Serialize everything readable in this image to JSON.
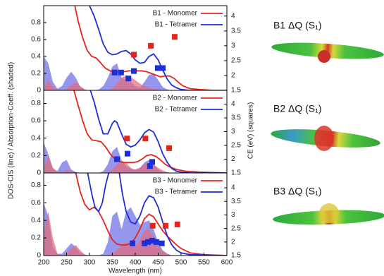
{
  "chart_data": [
    {
      "type": "line",
      "xlim": [
        200,
        600
      ],
      "ylim": [
        0,
        1.0
      ],
      "yticks": [
        0,
        0.2,
        0.4,
        0.6,
        0.8
      ],
      "y2lim": [
        1.5,
        4.35
      ],
      "y2ticks": [
        1.5,
        2,
        2.5,
        3,
        3.5,
        4
      ],
      "series": [
        {
          "style": "area",
          "color": "#6a6ae6",
          "x": [
            200,
            210,
            220,
            230,
            240,
            250,
            260,
            270,
            280,
            290,
            300,
            310,
            320,
            330,
            340,
            350,
            360,
            370,
            380,
            390,
            400,
            410,
            420,
            430,
            440,
            450,
            460,
            470,
            480,
            490,
            500
          ],
          "values": [
            0.4,
            0.32,
            0.1,
            0.02,
            0.05,
            0.15,
            0.22,
            0.15,
            0.04,
            0.01,
            0,
            0,
            0.01,
            0.05,
            0.15,
            0.28,
            0.32,
            0.15,
            0.12,
            0.1,
            0.05,
            0.03,
            0.1,
            0.18,
            0.2,
            0.12,
            0.04,
            0.01,
            0,
            0,
            0
          ]
        },
        {
          "style": "area",
          "color": "#e46a78",
          "x": [
            200,
            210,
            220,
            230,
            240,
            250,
            260,
            270,
            280,
            290,
            300,
            310,
            320,
            330,
            340,
            350,
            360,
            370,
            380,
            390,
            400,
            410,
            420,
            430,
            440,
            450,
            460,
            470,
            480,
            490,
            500
          ],
          "values": [
            0.02,
            0.12,
            0.04,
            0.01,
            0,
            0.02,
            0.06,
            0.1,
            0.05,
            0.01,
            0,
            0,
            0,
            0,
            0,
            0.02,
            0.08,
            0.15,
            0.18,
            0.16,
            0.12,
            0.08,
            0.05,
            0.03,
            0.02,
            0.01,
            0,
            0,
            0,
            0,
            0
          ]
        },
        {
          "style": "line",
          "name": "B1 - Monomer",
          "color": "#e8231c",
          "x": [
            268,
            275,
            285,
            295,
            305,
            315,
            325,
            335,
            345,
            355,
            365,
            375,
            385,
            395,
            405,
            415,
            425,
            435,
            445,
            455,
            465,
            475,
            485,
            495,
            505,
            520,
            540,
            570,
            600
          ],
          "values": [
            1.0,
            0.82,
            0.62,
            0.47,
            0.4,
            0.38,
            0.32,
            0.26,
            0.23,
            0.22,
            0.22,
            0.22,
            0.23,
            0.23,
            0.23,
            0.23,
            0.22,
            0.2,
            0.18,
            0.16,
            0.17,
            0.17,
            0.14,
            0.09,
            0.05,
            0.02,
            0.01,
            0,
            0
          ]
        },
        {
          "style": "line",
          "name": "B1 - Tetramer",
          "color": "#1c2ed8",
          "x": [
            300,
            310,
            320,
            330,
            340,
            350,
            360,
            370,
            380,
            390,
            400,
            410,
            420,
            430,
            440,
            450,
            460,
            470,
            480,
            490,
            500,
            520,
            550,
            600
          ],
          "values": [
            1.0,
            0.88,
            0.72,
            0.55,
            0.45,
            0.42,
            0.43,
            0.46,
            0.47,
            0.43,
            0.36,
            0.32,
            0.33,
            0.4,
            0.43,
            0.36,
            0.24,
            0.13,
            0.06,
            0.03,
            0.01,
            0,
            0,
            0
          ]
        },
        {
          "style": "square",
          "axis": "y2",
          "color": "#e8231c",
          "x": [
            397,
            434,
            486
          ],
          "values": [
            2.7,
            3.0,
            3.3
          ]
        },
        {
          "style": "square",
          "axis": "y2",
          "color": "#1c2ed8",
          "x": [
            355,
            369,
            385,
            397,
            449,
            460
          ],
          "values": [
            2.1,
            2.1,
            1.9,
            2.15,
            2.25,
            2.25
          ]
        }
      ]
    },
    {
      "type": "line",
      "xlim": [
        200,
        600
      ],
      "ylim": [
        0,
        0.95
      ],
      "yticks": [
        0,
        0.2,
        0.4,
        0.6,
        0.8
      ],
      "y2lim": [
        1.5,
        4.5
      ],
      "y2ticks": [
        1.5,
        2,
        2.5,
        3,
        3.5,
        4
      ],
      "ylabel": "DOS-CIS (line) / Absorption-Coeff. (shaded)",
      "y2label": "CE (eV) (squares)",
      "series": [
        {
          "style": "area",
          "color": "#6a6ae6",
          "x": [
            200,
            210,
            220,
            230,
            240,
            250,
            260,
            270,
            280,
            290,
            300,
            310,
            320,
            330,
            340,
            350,
            360,
            370,
            380,
            390,
            400,
            410,
            420,
            430,
            440,
            450,
            460,
            470,
            480,
            490,
            500
          ],
          "values": [
            0.35,
            0.22,
            0.05,
            0.02,
            0.12,
            0.15,
            0.04,
            0.01,
            0,
            0,
            0,
            0,
            0,
            0.02,
            0.1,
            0.25,
            0.3,
            0.15,
            0.08,
            0.05,
            0.04,
            0.06,
            0.12,
            0.15,
            0.1,
            0.04,
            0.01,
            0,
            0,
            0,
            0
          ]
        },
        {
          "style": "area",
          "color": "#e46a78",
          "x": [
            200,
            210,
            220,
            230,
            240,
            250,
            260,
            270,
            280,
            290,
            300,
            310,
            320,
            330,
            340,
            350,
            360,
            370,
            380,
            390,
            400,
            410,
            420,
            430,
            440,
            450,
            460,
            470,
            480,
            490,
            500
          ],
          "values": [
            0.05,
            0.2,
            0.06,
            0.01,
            0.01,
            0.03,
            0.02,
            0,
            0,
            0,
            0,
            0,
            0,
            0,
            0.01,
            0.04,
            0.1,
            0.14,
            0.12,
            0.06,
            0.03,
            0.06,
            0.1,
            0.12,
            0.1,
            0.06,
            0.03,
            0.01,
            0,
            0,
            0
          ]
        },
        {
          "style": "line",
          "name": "B2 - Monomer",
          "color": "#e8231c",
          "x": [
            266,
            275,
            285,
            295,
            305,
            315,
            325,
            335,
            345,
            355,
            365,
            375,
            385,
            395,
            405,
            415,
            425,
            435,
            445,
            455,
            465,
            475,
            490,
            510,
            540,
            600
          ],
          "values": [
            0.95,
            0.78,
            0.6,
            0.45,
            0.38,
            0.37,
            0.36,
            0.3,
            0.22,
            0.16,
            0.13,
            0.12,
            0.12,
            0.12,
            0.13,
            0.16,
            0.2,
            0.21,
            0.19,
            0.15,
            0.1,
            0.07,
            0.04,
            0.02,
            0.01,
            0
          ]
        },
        {
          "style": "line",
          "name": "B2 - Tetramer",
          "color": "#1c2ed8",
          "x": [
            302,
            310,
            320,
            330,
            340,
            350,
            355,
            360,
            370,
            380,
            390,
            400,
            410,
            420,
            430,
            440,
            450,
            460,
            470,
            480,
            490,
            500,
            520,
            600
          ],
          "values": [
            0.95,
            0.82,
            0.62,
            0.45,
            0.45,
            0.57,
            0.6,
            0.58,
            0.45,
            0.33,
            0.3,
            0.32,
            0.38,
            0.46,
            0.5,
            0.47,
            0.36,
            0.22,
            0.12,
            0.05,
            0.02,
            0.01,
            0,
            0
          ]
        },
        {
          "style": "square",
          "axis": "y2",
          "color": "#e8231c",
          "x": [
            382,
            422,
            474
          ],
          "values": [
            2.75,
            2.75,
            2.4
          ]
        },
        {
          "style": "square",
          "axis": "y2",
          "color": "#1c2ed8",
          "x": [
            360,
            383,
            432,
            437
          ],
          "values": [
            2.0,
            2.2,
            1.75,
            1.9
          ]
        }
      ]
    },
    {
      "type": "line",
      "xlim": [
        200,
        600
      ],
      "ylim": [
        0,
        0.94
      ],
      "yticks": [
        0,
        0.2,
        0.4,
        0.6,
        0.8
      ],
      "y2lim": [
        1.5,
        4.55
      ],
      "y2ticks": [
        1.5,
        2,
        2.5,
        3,
        3.5,
        4
      ],
      "xticks": [
        200,
        250,
        300,
        350,
        400,
        450,
        500,
        550,
        600
      ],
      "xlabel": "Wavelength (nm)",
      "series": [
        {
          "style": "area",
          "color": "#6a6ae6",
          "x": [
            200,
            210,
            220,
            230,
            240,
            250,
            260,
            270,
            280,
            290,
            300,
            310,
            320,
            330,
            340,
            350,
            360,
            370,
            380,
            390,
            400,
            410,
            420,
            430,
            440,
            450,
            460,
            470,
            480,
            490,
            500
          ],
          "values": [
            0.6,
            0.45,
            0.1,
            0.02,
            0.02,
            0.08,
            0.14,
            0.1,
            0.03,
            0.01,
            0,
            0,
            0,
            0.02,
            0.15,
            0.45,
            0.5,
            0.3,
            0.5,
            0.55,
            0.45,
            0.35,
            0.38,
            0.4,
            0.3,
            0.15,
            0.06,
            0.02,
            0,
            0,
            0
          ]
        },
        {
          "style": "area",
          "color": "#e46a78",
          "x": [
            200,
            210,
            220,
            230,
            240,
            250,
            260,
            270,
            280,
            290,
            300,
            310,
            320,
            330,
            340,
            350,
            360,
            370,
            380,
            390,
            400,
            410,
            420,
            430,
            440,
            450,
            460,
            470,
            480,
            490,
            500
          ],
          "values": [
            0.25,
            0.5,
            0.2,
            0.02,
            0,
            0.02,
            0.08,
            0.12,
            0.06,
            0.01,
            0,
            0,
            0,
            0,
            0,
            0.02,
            0.06,
            0.12,
            0.15,
            0.12,
            0.1,
            0.18,
            0.28,
            0.3,
            0.22,
            0.12,
            0.05,
            0.02,
            0,
            0,
            0
          ]
        },
        {
          "style": "line",
          "name": "B3 - Monomer",
          "color": "#e8231c",
          "x": [
            270,
            280,
            290,
            300,
            310,
            320,
            330,
            340,
            350,
            360,
            370,
            380,
            390,
            400,
            410,
            420,
            430,
            440,
            450,
            460,
            470,
            480,
            490,
            500,
            520,
            550,
            600
          ],
          "values": [
            0.94,
            0.72,
            0.58,
            0.52,
            0.55,
            0.5,
            0.4,
            0.28,
            0.18,
            0.13,
            0.12,
            0.12,
            0.14,
            0.2,
            0.3,
            0.42,
            0.47,
            0.44,
            0.36,
            0.28,
            0.22,
            0.17,
            0.12,
            0.08,
            0.03,
            0.01,
            0
          ]
        },
        {
          "style": "line",
          "name": "B3 - Tetramer",
          "color": "#1c2ed8",
          "x": [
            296,
            305,
            312,
            320,
            328,
            335,
            342,
            353,
            365,
            372,
            380,
            390,
            400,
            410,
            420,
            430,
            440,
            450,
            460,
            470,
            480,
            490,
            500,
            520,
            600
          ],
          "values": [
            0.94,
            0.7,
            0.55,
            0.5,
            0.6,
            0.8,
            0.94,
            null,
            0.94,
            0.7,
            0.5,
            0.38,
            0.36,
            0.45,
            0.6,
            0.68,
            0.66,
            0.55,
            0.38,
            0.22,
            0.12,
            0.06,
            0.03,
            0.01,
            0
          ]
        },
        {
          "style": "square",
          "axis": "y2",
          "color": "#e8231c",
          "x": [
            438,
            466,
            492
          ],
          "values": [
            2.6,
            2.6,
            2.65
          ]
        },
        {
          "style": "square",
          "axis": "y2",
          "color": "#1c2ed8",
          "x": [
            394,
            420,
            428,
            437,
            446,
            458
          ],
          "values": [
            1.95,
            1.95,
            2.0,
            2.05,
            2.0,
            1.95
          ]
        }
      ]
    }
  ],
  "molecules": [
    {
      "label": "B1 ΔQ (S₁)"
    },
    {
      "label": "B2 ΔQ (S₁)"
    },
    {
      "label": "B3 ΔQ (S₁)"
    }
  ]
}
